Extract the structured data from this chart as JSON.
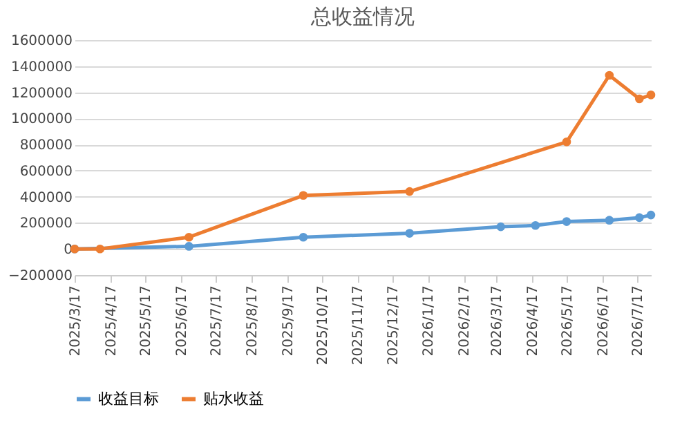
{
  "chart_data": {
    "type": "line",
    "title": "总收益情况",
    "series": [
      {
        "name": "收益目标",
        "color": "#5b9bd5",
        "x": [
          "2025-03-17",
          "2025-06-24",
          "2025-10-01",
          "2026-01-01",
          "2026-03-21",
          "2026-04-20",
          "2026-05-17",
          "2026-06-23",
          "2026-07-19",
          "2026-07-29"
        ],
        "values": [
          0,
          20000,
          90000,
          120000,
          170000,
          180000,
          210000,
          220000,
          240000,
          260000
        ]
      },
      {
        "name": "贴水收益",
        "color": "#ed7d31",
        "x": [
          "2025-03-17",
          "2025-04-08",
          "2025-06-24",
          "2025-10-01",
          "2026-01-01",
          "2026-05-17",
          "2026-06-23",
          "2026-07-19",
          "2026-07-29"
        ],
        "values": [
          0,
          0,
          90000,
          410000,
          440000,
          820000,
          1330000,
          1150000,
          1180000
        ]
      }
    ],
    "xlim": [
      "2025-03-17",
      "2026-07-29"
    ],
    "xticks": [
      {
        "value": "2025-03-17",
        "label": "2025/3/17"
      },
      {
        "value": "2025-04-17",
        "label": "2025/4/17"
      },
      {
        "value": "2025-05-17",
        "label": "2025/5/17"
      },
      {
        "value": "2025-06-17",
        "label": "2025/6/17"
      },
      {
        "value": "2025-07-17",
        "label": "2025/7/17"
      },
      {
        "value": "2025-08-17",
        "label": "2025/8/17"
      },
      {
        "value": "2025-09-17",
        "label": "2025/9/17"
      },
      {
        "value": "2025-10-17",
        "label": "2025/10/17"
      },
      {
        "value": "2025-11-17",
        "label": "2025/11/17"
      },
      {
        "value": "2025-12-17",
        "label": "2025/12/17"
      },
      {
        "value": "2026-01-17",
        "label": "2026/1/17"
      },
      {
        "value": "2026-02-17",
        "label": "2026/2/17"
      },
      {
        "value": "2026-03-17",
        "label": "2026/3/17"
      },
      {
        "value": "2026-04-17",
        "label": "2026/4/17"
      },
      {
        "value": "2026-05-17",
        "label": "2026/5/17"
      },
      {
        "value": "2026-06-17",
        "label": "2026/6/17"
      },
      {
        "value": "2026-07-17",
        "label": "2026/7/17"
      }
    ],
    "ylim": [
      -200000,
      1600000
    ],
    "yticks": [
      -200000,
      0,
      200000,
      400000,
      600000,
      800000,
      1000000,
      1200000,
      1400000,
      1600000
    ],
    "grid": "y",
    "legend": "bottom",
    "marker": "circle",
    "line_style": "solid"
  }
}
